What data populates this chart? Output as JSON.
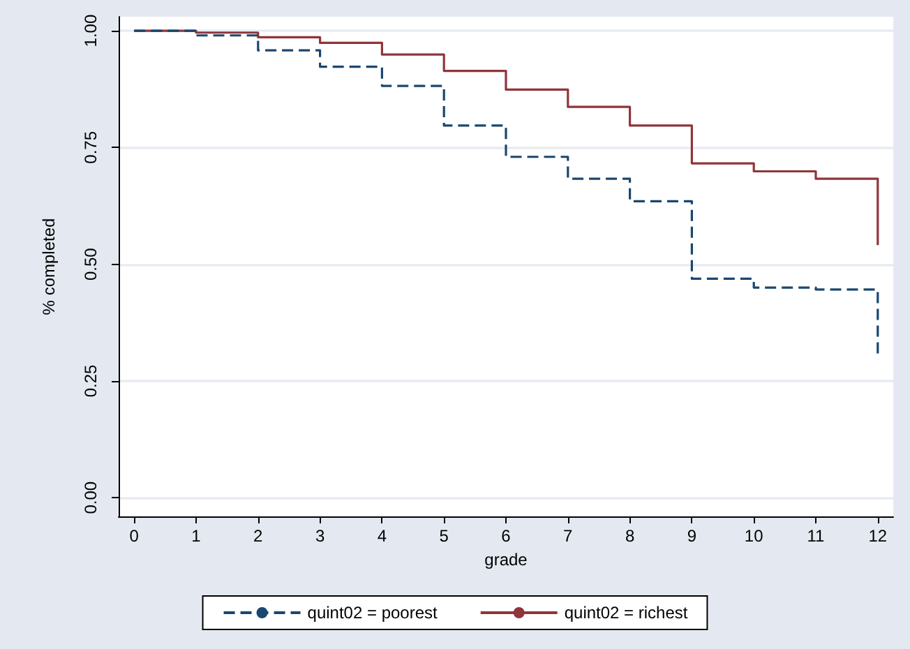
{
  "chart_data": {
    "type": "step",
    "xlabel": "grade",
    "ylabel": "% completed",
    "x": [
      0,
      1,
      2,
      3,
      4,
      5,
      6,
      7,
      8,
      9,
      10,
      11,
      12
    ],
    "series": [
      {
        "name": "quint02 = poorest",
        "color": "#1a476f",
        "line_style": "dashed",
        "values": [
          1.0,
          0.99,
          0.958,
          0.923,
          0.882,
          0.797,
          0.73,
          0.683,
          0.635,
          0.469,
          0.45,
          0.446,
          0.309
        ]
      },
      {
        "name": "quint02 = richest",
        "color": "#90353b",
        "line_style": "solid",
        "values": [
          1.0,
          0.996,
          0.986,
          0.974,
          0.949,
          0.914,
          0.874,
          0.837,
          0.797,
          0.716,
          0.699,
          0.683,
          0.541
        ]
      }
    ],
    "xlim": [
      -0.25,
      12.25
    ],
    "xticks": [
      0,
      1,
      2,
      3,
      4,
      5,
      6,
      7,
      8,
      9,
      10,
      11,
      12
    ],
    "ylim": [
      -0.04,
      1.03
    ],
    "yticks": [
      {
        "value": 0,
        "label": "0.00"
      },
      {
        "value": 0.25,
        "label": "0.25"
      },
      {
        "value": 0.5,
        "label": "0.50"
      },
      {
        "value": 0.75,
        "label": "0.75"
      },
      {
        "value": 1,
        "label": "1.00"
      }
    ],
    "grid": "y",
    "legend": "bottom",
    "marker": "none"
  }
}
